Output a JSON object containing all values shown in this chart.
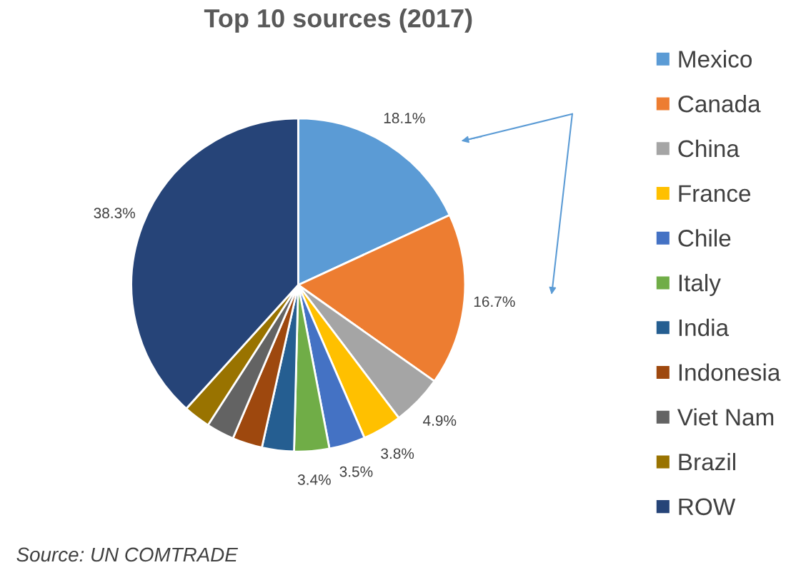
{
  "chart_data": {
    "type": "pie",
    "title": "Top 10 sources (2017)",
    "categories": [
      "Mexico",
      "Canada",
      "China",
      "France",
      "Chile",
      "Italy",
      "India",
      "Indonesia",
      "Viet Nam",
      "Brazil",
      "ROW"
    ],
    "values": [
      18.1,
      16.7,
      4.9,
      3.8,
      3.5,
      3.4,
      3.1,
      2.9,
      2.7,
      2.6,
      38.3
    ],
    "colors": [
      "#5b9bd5",
      "#ed7d31",
      "#a5a5a5",
      "#ffc000",
      "#4472c4",
      "#70ad47",
      "#255e91",
      "#9e480e",
      "#636363",
      "#997300",
      "#264478"
    ],
    "value_labels": [
      "18.1%",
      "16.7%",
      "4.9%",
      "3.8%",
      "3.5%",
      "3.4%",
      null,
      null,
      null,
      null,
      "38.3%"
    ],
    "legend": "right",
    "annotations": [
      "Source: UN COMTRADE"
    ]
  }
}
